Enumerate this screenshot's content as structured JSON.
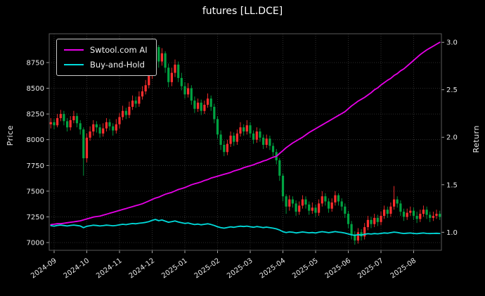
{
  "chart": {
    "title": "futures [LL.DCE]"
  },
  "chart_data": {
    "type": "candlestick",
    "title": "futures [LL.DCE]",
    "x_axis": {
      "tick_labels": [
        "2024-09",
        "2024-10",
        "2024-11",
        "2024-12",
        "2025-01",
        "2025-02",
        "2025-03",
        "2025-04",
        "2025-05",
        "2025-06",
        "2025-07",
        "2025-08"
      ],
      "tick_indices": [
        1,
        11,
        21,
        31,
        41,
        51,
        61,
        71,
        81,
        91,
        101,
        111
      ]
    },
    "left_axis": {
      "label": "Price",
      "tick_values": [
        7000,
        7250,
        7500,
        7750,
        8000,
        8250,
        8500,
        8750
      ],
      "tick_labels": [
        "7000",
        "7250",
        "7500",
        "7750",
        "8000",
        "8250",
        "8500",
        "8750"
      ],
      "range": [
        6925,
        9030
      ]
    },
    "right_axis": {
      "label": "Return",
      "tick_values": [
        1.0,
        1.5,
        2.0,
        2.5,
        3.0
      ],
      "tick_labels": [
        "1.0",
        "1.5",
        "2.0",
        "2.5",
        "3.0"
      ],
      "range": [
        0.81,
        3.09
      ]
    },
    "candles": {
      "up_color": "#ff2e2e",
      "down_color": "#00a342",
      "ohlc": [
        [
          8150,
          8210,
          8110,
          8170
        ],
        [
          8170,
          8200,
          8100,
          8140
        ],
        [
          8140,
          8250,
          8120,
          8210
        ],
        [
          8210,
          8290,
          8180,
          8250
        ],
        [
          8250,
          8280,
          8140,
          8180
        ],
        [
          8180,
          8210,
          8080,
          8120
        ],
        [
          8120,
          8230,
          8090,
          8190
        ],
        [
          8190,
          8280,
          8160,
          8230
        ],
        [
          8230,
          8260,
          8120,
          8160
        ],
        [
          8160,
          8190,
          8050,
          8100
        ],
        [
          8100,
          8120,
          7650,
          7820
        ],
        [
          7820,
          8060,
          7780,
          8020
        ],
        [
          8020,
          8130,
          7990,
          8080
        ],
        [
          8080,
          8190,
          8040,
          8150
        ],
        [
          8150,
          8180,
          8070,
          8120
        ],
        [
          8120,
          8150,
          8020,
          8060
        ],
        [
          8060,
          8160,
          8030,
          8110
        ],
        [
          8110,
          8210,
          8080,
          8170
        ],
        [
          8170,
          8200,
          8090,
          8130
        ],
        [
          8130,
          8160,
          8040,
          8090
        ],
        [
          8090,
          8200,
          8060,
          8150
        ],
        [
          8150,
          8260,
          8110,
          8220
        ],
        [
          8220,
          8330,
          8190,
          8280
        ],
        [
          8280,
          8310,
          8200,
          8240
        ],
        [
          8240,
          8370,
          8210,
          8320
        ],
        [
          8320,
          8430,
          8290,
          8380
        ],
        [
          8380,
          8420,
          8310,
          8350
        ],
        [
          8350,
          8470,
          8320,
          8420
        ],
        [
          8420,
          8520,
          8390,
          8470
        ],
        [
          8470,
          8580,
          8440,
          8530
        ],
        [
          8530,
          8670,
          8500,
          8620
        ],
        [
          8620,
          8830,
          8590,
          8780
        ],
        [
          8780,
          8950,
          8740,
          8900
        ],
        [
          8900,
          8920,
          8700,
          8760
        ],
        [
          8760,
          8890,
          8720,
          8840
        ],
        [
          8840,
          8860,
          8650,
          8700
        ],
        [
          8700,
          8740,
          8510,
          8560
        ],
        [
          8560,
          8700,
          8520,
          8650
        ],
        [
          8650,
          8780,
          8610,
          8730
        ],
        [
          8730,
          8760,
          8560,
          8600
        ],
        [
          8600,
          8650,
          8480,
          8520
        ],
        [
          8520,
          8560,
          8400,
          8440
        ],
        [
          8440,
          8550,
          8410,
          8500
        ],
        [
          8500,
          8530,
          8340,
          8380
        ],
        [
          8380,
          8420,
          8260,
          8300
        ],
        [
          8300,
          8400,
          8270,
          8360
        ],
        [
          8360,
          8390,
          8240,
          8280
        ],
        [
          8280,
          8380,
          8250,
          8340
        ],
        [
          8340,
          8450,
          8310,
          8400
        ],
        [
          8400,
          8430,
          8280,
          8320
        ],
        [
          8320,
          8350,
          8160,
          8200
        ],
        [
          8200,
          8230,
          8010,
          8050
        ],
        [
          8050,
          8090,
          7900,
          7950
        ],
        [
          7950,
          7990,
          7840,
          7880
        ],
        [
          7880,
          8000,
          7850,
          7960
        ],
        [
          7960,
          8080,
          7930,
          8040
        ],
        [
          8040,
          8070,
          7940,
          7980
        ],
        [
          7980,
          8100,
          7950,
          8060
        ],
        [
          8060,
          8170,
          8030,
          8120
        ],
        [
          8120,
          8150,
          8040,
          8080
        ],
        [
          8080,
          8190,
          8050,
          8140
        ],
        [
          8140,
          8170,
          8020,
          8060
        ],
        [
          8060,
          8090,
          7960,
          8000
        ],
        [
          8000,
          8120,
          7970,
          8080
        ],
        [
          8080,
          8110,
          7980,
          8020
        ],
        [
          8020,
          8050,
          7910,
          7950
        ],
        [
          7950,
          8050,
          7920,
          8010
        ],
        [
          8010,
          8040,
          7900,
          7940
        ],
        [
          7940,
          7970,
          7840,
          7880
        ],
        [
          7880,
          7910,
          7760,
          7800
        ],
        [
          7800,
          7820,
          7600,
          7650
        ],
        [
          7650,
          7670,
          7400,
          7450
        ],
        [
          7450,
          7470,
          7280,
          7350
        ],
        [
          7350,
          7460,
          7310,
          7420
        ],
        [
          7420,
          7450,
          7340,
          7380
        ],
        [
          7380,
          7410,
          7260,
          7300
        ],
        [
          7300,
          7400,
          7270,
          7360
        ],
        [
          7360,
          7460,
          7330,
          7420
        ],
        [
          7420,
          7450,
          7330,
          7370
        ],
        [
          7370,
          7400,
          7270,
          7310
        ],
        [
          7310,
          7390,
          7280,
          7340
        ],
        [
          7340,
          7370,
          7250,
          7290
        ],
        [
          7290,
          7420,
          7260,
          7380
        ],
        [
          7380,
          7500,
          7350,
          7450
        ],
        [
          7450,
          7480,
          7360,
          7400
        ],
        [
          7400,
          7430,
          7290,
          7330
        ],
        [
          7330,
          7430,
          7300,
          7390
        ],
        [
          7390,
          7500,
          7360,
          7460
        ],
        [
          7460,
          7480,
          7360,
          7400
        ],
        [
          7400,
          7430,
          7310,
          7350
        ],
        [
          7350,
          7380,
          7240,
          7280
        ],
        [
          7280,
          7310,
          7140,
          7180
        ],
        [
          7180,
          7210,
          7030,
          7080
        ],
        [
          7080,
          7110,
          6980,
          7020
        ],
        [
          7020,
          7140,
          6990,
          7100
        ],
        [
          7100,
          7130,
          7020,
          7060
        ],
        [
          7060,
          7190,
          7030,
          7150
        ],
        [
          7150,
          7260,
          7120,
          7220
        ],
        [
          7220,
          7250,
          7140,
          7180
        ],
        [
          7180,
          7280,
          7150,
          7240
        ],
        [
          7240,
          7270,
          7160,
          7200
        ],
        [
          7200,
          7300,
          7170,
          7260
        ],
        [
          7260,
          7360,
          7230,
          7320
        ],
        [
          7320,
          7350,
          7240,
          7280
        ],
        [
          7280,
          7390,
          7250,
          7350
        ],
        [
          7350,
          7550,
          7320,
          7420
        ],
        [
          7420,
          7450,
          7340,
          7380
        ],
        [
          7380,
          7410,
          7260,
          7300
        ],
        [
          7300,
          7330,
          7210,
          7250
        ],
        [
          7250,
          7330,
          7220,
          7290
        ],
        [
          7290,
          7350,
          7260,
          7310
        ],
        [
          7310,
          7340,
          7220,
          7260
        ],
        [
          7260,
          7300,
          7190,
          7230
        ],
        [
          7230,
          7320,
          7200,
          7280
        ],
        [
          7280,
          7360,
          7250,
          7320
        ],
        [
          7320,
          7350,
          7230,
          7270
        ],
        [
          7270,
          7300,
          7200,
          7240
        ],
        [
          7240,
          7300,
          7210,
          7260
        ],
        [
          7260,
          7320,
          7230,
          7280
        ],
        [
          7280,
          7310,
          7220,
          7250
        ]
      ]
    },
    "series": [
      {
        "name": "Swtool.com AI",
        "axis": "right",
        "color": "#e800e8",
        "values": [
          1.08,
          1.085,
          1.09,
          1.09,
          1.095,
          1.1,
          1.105,
          1.11,
          1.115,
          1.12,
          1.13,
          1.14,
          1.15,
          1.16,
          1.165,
          1.17,
          1.18,
          1.19,
          1.2,
          1.21,
          1.22,
          1.23,
          1.24,
          1.25,
          1.26,
          1.27,
          1.28,
          1.29,
          1.3,
          1.315,
          1.33,
          1.345,
          1.36,
          1.37,
          1.385,
          1.4,
          1.41,
          1.42,
          1.435,
          1.45,
          1.46,
          1.47,
          1.485,
          1.5,
          1.51,
          1.52,
          1.53,
          1.545,
          1.555,
          1.57,
          1.58,
          1.59,
          1.6,
          1.61,
          1.62,
          1.63,
          1.645,
          1.655,
          1.665,
          1.68,
          1.69,
          1.7,
          1.71,
          1.725,
          1.735,
          1.75,
          1.76,
          1.775,
          1.79,
          1.8,
          1.83,
          1.86,
          1.89,
          1.915,
          1.94,
          1.96,
          1.98,
          2.0,
          2.025,
          2.05,
          2.07,
          2.09,
          2.11,
          2.13,
          2.15,
          2.17,
          2.19,
          2.21,
          2.23,
          2.25,
          2.27,
          2.3,
          2.33,
          2.355,
          2.38,
          2.4,
          2.42,
          2.445,
          2.47,
          2.5,
          2.52,
          2.55,
          2.575,
          2.6,
          2.62,
          2.65,
          2.67,
          2.7,
          2.72,
          2.75,
          2.78,
          2.81,
          2.84,
          2.87,
          2.895,
          2.92,
          2.94,
          2.96,
          2.98,
          3.0
        ]
      },
      {
        "name": "Buy-and-Hold",
        "axis": "right",
        "color": "#00dcdc",
        "values": [
          1.07,
          1.065,
          1.072,
          1.076,
          1.071,
          1.066,
          1.072,
          1.076,
          1.071,
          1.066,
          1.048,
          1.063,
          1.068,
          1.074,
          1.071,
          1.066,
          1.07,
          1.075,
          1.072,
          1.068,
          1.072,
          1.078,
          1.084,
          1.08,
          1.087,
          1.092,
          1.089,
          1.095,
          1.099,
          1.104,
          1.112,
          1.125,
          1.135,
          1.122,
          1.129,
          1.117,
          1.105,
          1.112,
          1.119,
          1.108,
          1.1,
          1.093,
          1.098,
          1.088,
          1.081,
          1.086,
          1.079,
          1.084,
          1.089,
          1.082,
          1.071,
          1.058,
          1.049,
          1.043,
          1.05,
          1.057,
          1.052,
          1.059,
          1.064,
          1.06,
          1.065,
          1.058,
          1.053,
          1.06,
          1.055,
          1.049,
          1.054,
          1.048,
          1.043,
          1.036,
          1.023,
          1.006,
          0.997,
          1.003,
          1.0,
          0.993,
          0.998,
          1.003,
          0.999,
          0.994,
          0.997,
          0.992,
          1.0,
          1.006,
          1.002,
          0.996,
          1.001,
          1.007,
          1.002,
          0.998,
          0.991,
          0.982,
          0.973,
          0.967,
          0.974,
          0.971,
          0.979,
          0.985,
          0.981,
          0.986,
          0.983,
          0.988,
          0.993,
          0.99,
          0.996,
          1.002,
          0.998,
          0.991,
          0.987,
          0.99,
          0.992,
          0.988,
          0.985,
          0.989,
          0.992,
          0.988,
          0.986,
          0.988,
          0.989,
          0.987
        ]
      }
    ]
  }
}
